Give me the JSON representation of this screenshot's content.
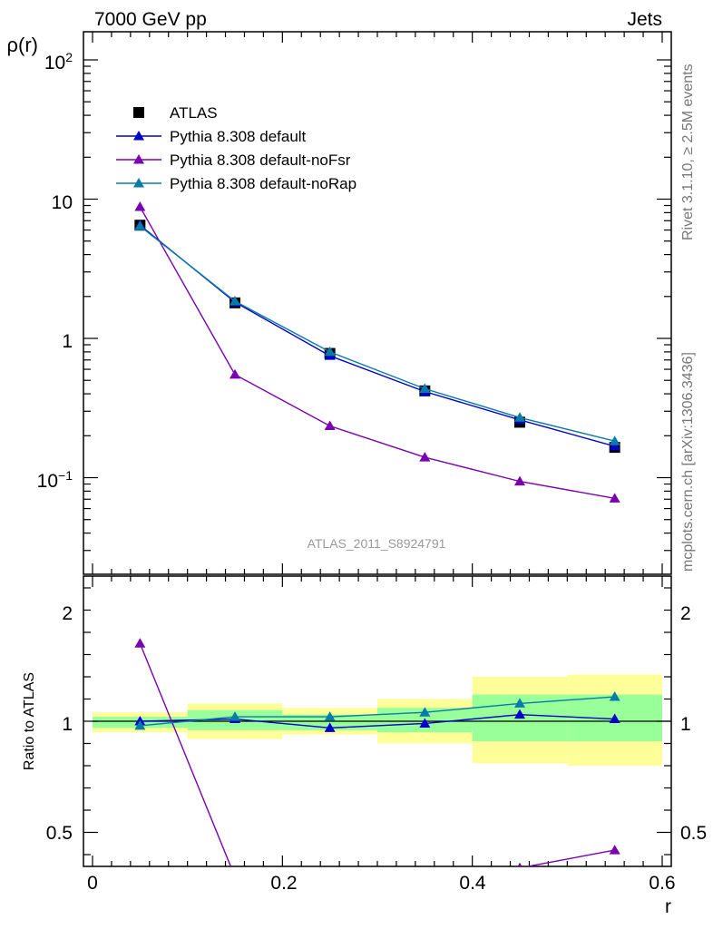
{
  "header": {
    "left": "7000 GeV pp",
    "right": "Jets"
  },
  "side_labels": {
    "rivet": "Rivet 3.1.10, ≥ 2.5M events",
    "mcplots": "mcplots.cern.ch [arXiv:1306.3436]"
  },
  "analysis_label": "ATLAS_2011_S8924791",
  "colors": {
    "atlas": "#000000",
    "default": "#0000cc",
    "noFsr": "#7a00b0",
    "noRap": "#0a7ba8",
    "band_yellow": "#ffff99",
    "band_green": "#99ff99"
  },
  "chart_data": [
    {
      "type": "line",
      "panel": "main",
      "ylabel": "ρ(r)",
      "yscale": "log",
      "ylim": [
        0.03,
        160
      ],
      "xlim": [
        -0.02,
        0.6
      ],
      "ytick_labels": [
        "10−1",
        "1",
        "10",
        "10²"
      ],
      "legend_placement": "top-left",
      "legend": [
        "ATLAS",
        "Pythia 8.308 default",
        "Pythia 8.308 default-noFsr",
        "Pythia 8.308 default-noRap"
      ],
      "x": [
        0.05,
        0.15,
        0.25,
        0.35,
        0.45,
        0.55
      ],
      "series": [
        {
          "name": "ATLAS",
          "marker": "square",
          "values": [
            6.5,
            1.8,
            0.78,
            0.42,
            0.25,
            0.165
          ]
        },
        {
          "name": "Pythia 8.308 default",
          "marker": "triangle",
          "values": [
            6.5,
            1.82,
            0.75,
            0.415,
            0.26,
            0.168
          ]
        },
        {
          "name": "Pythia 8.308 default-noFsr",
          "marker": "triangle",
          "values": [
            8.8,
            0.55,
            0.235,
            0.14,
            0.094,
            0.071
          ]
        },
        {
          "name": "Pythia 8.308 default-noRap",
          "marker": "triangle",
          "values": [
            6.4,
            1.85,
            0.8,
            0.435,
            0.27,
            0.183
          ]
        }
      ]
    },
    {
      "type": "line",
      "panel": "ratio",
      "ylabel": "Ratio to ATLAS",
      "xlabel": "r",
      "ylim": [
        0.35,
        2.5
      ],
      "xlim": [
        -0.02,
        0.6
      ],
      "ytick_labels": [
        "0.5",
        "1",
        "2"
      ],
      "xtick_labels": [
        "0",
        "0.2",
        "0.4",
        "0.6"
      ],
      "bands": {
        "edges": [
          0.0,
          0.1,
          0.2,
          0.3,
          0.4,
          0.5,
          0.6
        ],
        "yellow": [
          [
            0.95,
            1.04
          ],
          [
            0.92,
            1.08
          ],
          [
            0.94,
            1.06
          ],
          [
            0.9,
            1.1
          ],
          [
            0.81,
            1.2
          ],
          [
            0.8,
            1.21
          ]
        ],
        "green": [
          [
            0.97,
            1.02
          ],
          [
            0.96,
            1.05
          ],
          [
            0.96,
            1.03
          ],
          [
            0.95,
            1.06
          ],
          [
            0.91,
            1.12
          ],
          [
            0.91,
            1.12
          ]
        ]
      },
      "x": [
        0.05,
        0.15,
        0.25,
        0.35,
        0.45,
        0.55
      ],
      "series": [
        {
          "name": "Pythia 8.308 default",
          "values": [
            1.0,
            1.01,
            0.97,
            0.99,
            1.03,
            1.01
          ]
        },
        {
          "name": "Pythia 8.308 default-noFsr",
          "values": [
            1.35,
            0.3,
            0.3,
            0.3,
            0.34,
            0.42
          ]
        },
        {
          "name": "Pythia 8.308 default-noRap",
          "values": [
            0.98,
            1.02,
            1.02,
            1.04,
            1.08,
            1.11
          ]
        }
      ]
    }
  ]
}
